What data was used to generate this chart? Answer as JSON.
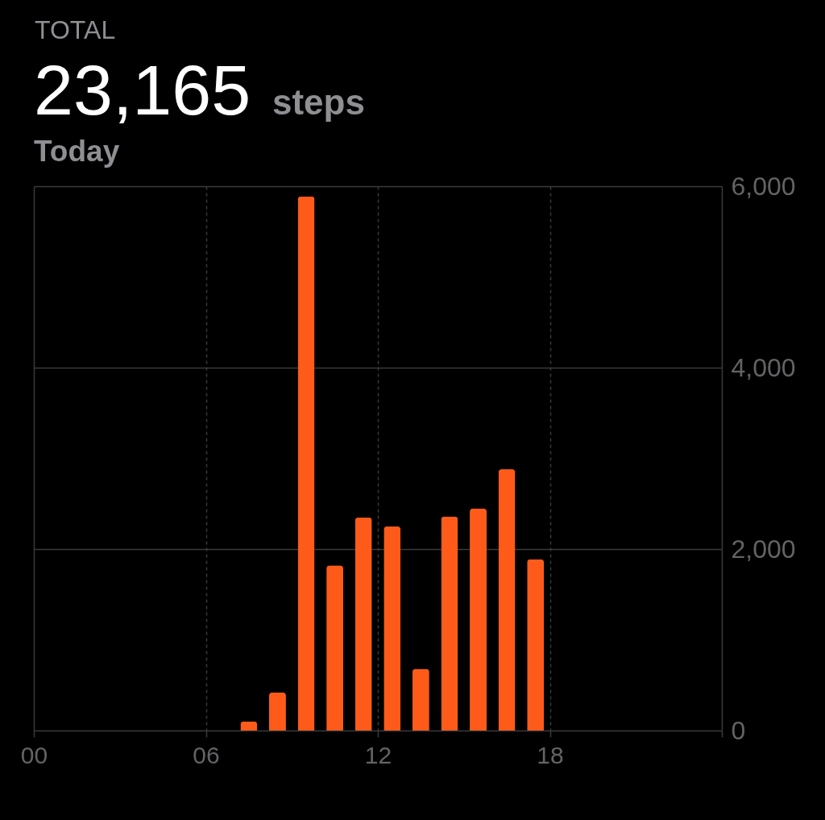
{
  "chart_data": {
    "type": "bar",
    "annotations": [
      "TOTAL",
      "23,165",
      "steps",
      "Today"
    ],
    "x": [
      7.5,
      8.5,
      9.5,
      10.5,
      11.5,
      12.5,
      13.5,
      14.5,
      15.5,
      16.5,
      17.5
    ],
    "values": [
      100,
      420,
      5890,
      1820,
      2350,
      2250,
      680,
      2360,
      2450,
      2880,
      1890
    ],
    "color": "#fe5b1a",
    "xlim": [
      0,
      24
    ],
    "xticks": [
      {
        "value": 0,
        "label": "00"
      },
      {
        "value": 6,
        "label": "06"
      },
      {
        "value": 12,
        "label": "12"
      },
      {
        "value": 18,
        "label": "18"
      },
      {
        "value": 24,
        "label": null
      }
    ],
    "ylim": [
      0,
      6000
    ],
    "yticks": [
      0,
      {
        "value": 2000,
        "label": "2,000"
      },
      {
        "value": 4000,
        "label": "4,000"
      },
      {
        "value": 6000,
        "label": "6,000"
      }
    ],
    "grid": true
  }
}
